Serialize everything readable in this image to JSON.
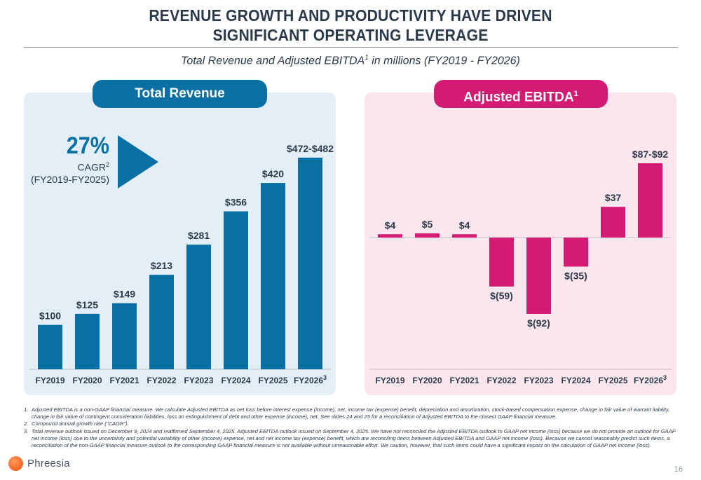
{
  "title_line1": "REVENUE GROWTH AND PRODUCTIVITY HAVE DRIVEN",
  "title_line2": "SIGNIFICANT OPERATING LEVERAGE",
  "subtitle": "Total Revenue and Adjusted EBITDA",
  "subtitle_sup": "1",
  "subtitle_suffix": " in millions (FY2019 - FY2026)",
  "revenue_panel": {
    "label": "Total Revenue",
    "cagr_value": "27%",
    "cagr_label": "CAGR",
    "cagr_sup": "2",
    "cagr_range": "(FY2019-FY2025)"
  },
  "ebitda_panel": {
    "label": "Adjusted EBITDA",
    "label_sup": "1"
  },
  "chart_data": [
    {
      "type": "bar",
      "title": "Total Revenue",
      "categories": [
        "FY2019",
        "FY2020",
        "FY2021",
        "FY2022",
        "FY2023",
        "FY2024",
        "FY2025",
        "FY2026"
      ],
      "category_sups": [
        "",
        "",
        "",
        "",
        "",
        "",
        "",
        "3"
      ],
      "values": [
        100,
        125,
        149,
        213,
        281,
        356,
        420,
        477
      ],
      "data_labels": [
        "$100",
        "$125",
        "$149",
        "$213",
        "$281",
        "$356",
        "$420",
        "$472-$482"
      ],
      "ylim": [
        0,
        500
      ],
      "color": "#0a6fa3"
    },
    {
      "type": "bar",
      "title": "Adjusted EBITDA",
      "categories": [
        "FY2019",
        "FY2020",
        "FY2021",
        "FY2022",
        "FY2023",
        "FY2024",
        "FY2025",
        "FY2026"
      ],
      "category_sups": [
        "",
        "",
        "",
        "",
        "",
        "",
        "",
        "3"
      ],
      "values": [
        4,
        5,
        4,
        -59,
        -92,
        -35,
        37,
        89.5
      ],
      "data_labels": [
        "$4",
        "$5",
        "$4",
        "$(59)",
        "$(92)",
        "$(35)",
        "$37",
        "$87-$92"
      ],
      "ylim": [
        -92,
        90
      ],
      "color": "#d41b73"
    }
  ],
  "footnotes": [
    {
      "num": "1.",
      "text": "Adjusted EBITDA is a non-GAAP financial measure. We calculate Adjusted EBITDA as net loss before interest expense (income), net, income tax (expense) benefit, depreciation and amortization, stock-based compensation expense, change in fair value of warrant liability, change in fair value of contingent consideration liabilities, loss on extinguishment of debt and other expense (income), net. See slides 24 and 25 for a reconciliation of Adjusted EBITDA to the closest GAAP financial measure."
    },
    {
      "num": "2.",
      "text": "Compound annual growth rate (\"CAGR\")."
    },
    {
      "num": "3.",
      "text": "Total revenue outlook issued on December 9, 2024 and reaffirmed September 4, 2025. Adjusted EBITDA outlook issued on September 4, 2025. We have not reconciled the Adjusted EBITDA outlook to GAAP net income (loss) because we do not provide an outlook for GAAP net income (loss) due to the uncertainty and potential variability of other (income) expense, net and net income tax (expense) benefit, which are reconciling items between Adjusted EBITDA and GAAP net income (loss). Because we cannot reasonably predict such items, a reconciliation of the non-GAAP financial measure outlook to the corresponding GAAP financial measure is not available without unreasonable effort. We caution, however, that such items could have a significant impact on the calculation of GAAP net income (loss)."
    }
  ],
  "logo_text": "Phreesia",
  "page_number": "16",
  "colors": {
    "revenue": "#0a6fa3",
    "ebitda": "#d41b73",
    "text": "#2b3a4a"
  }
}
